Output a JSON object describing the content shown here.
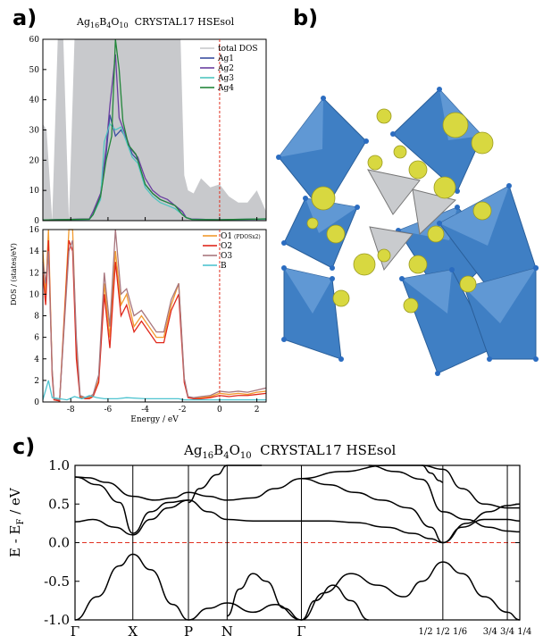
{
  "labels": {
    "a": "a)",
    "b": "b)",
    "c": "c)"
  },
  "colors": {
    "total_dos": "#c8c9cc",
    "Ag1": "#3b4fa0",
    "Ag2": "#6a3fa0",
    "Ag3": "#4fc4c0",
    "Ag4": "#23863a",
    "O1": "#f29a2e",
    "O2": "#e0281b",
    "O3": "#a8767e",
    "B": "#4fc4d0",
    "fermi": "#e03020",
    "octahedron": "#3f7fc4",
    "triangle": "#c9cbce",
    "isosurface": "#d8d840"
  },
  "panel_a": {
    "title_prefix": "Ag",
    "title_sub1": "16",
    "title_b": "B",
    "title_sub2": "4",
    "title_o": "O",
    "title_sub3": "10",
    "title_suffix": "CRYSTAL17 HSEsol",
    "xlabel": "Energy / eV",
    "ylabel": "DOS / (states/eV)",
    "top_yticks": [
      "0",
      "10",
      "20",
      "30",
      "40",
      "50",
      "60"
    ],
    "bottom_yticks": [
      "0",
      "2",
      "4",
      "6",
      "8",
      "10",
      "12",
      "14",
      "16"
    ],
    "xticks": [
      "-8",
      "-6",
      "-4",
      "-2",
      "0",
      "2"
    ],
    "top_legend": [
      "total DOS",
      "Ag1",
      "Ag2",
      "Ag3",
      "Ag4"
    ],
    "bottom_legend": [
      "O1",
      "O2",
      "O3",
      "B"
    ],
    "o1_note": "(PDOSx2)"
  },
  "chart_data": [
    {
      "type": "area",
      "panel": "a-top",
      "xlim": [
        -9.5,
        2.5
      ],
      "ylim": [
        0,
        60
      ],
      "series": [
        {
          "name": "total DOS",
          "x": [
            -9.5,
            -9.3,
            -9.0,
            -8.7,
            -8.4,
            -8.1,
            -7.8,
            -7.4,
            -7.0,
            -6.7,
            -6.4,
            -6.1,
            -5.8,
            -5.5,
            -5.2,
            -4.9,
            -4.5,
            -4.0,
            -3.5,
            -3.0,
            -2.5,
            -2.1,
            -1.9,
            -1.7,
            -1.4,
            -1.0,
            -0.5,
            0.0,
            0.5,
            1.0,
            1.5,
            2.0,
            2.5
          ],
          "y": [
            32,
            30,
            0,
            60,
            60,
            0,
            60,
            60,
            60,
            60,
            60,
            60,
            60,
            60,
            60,
            60,
            60,
            60,
            60,
            60,
            60,
            60,
            15,
            10,
            9,
            14,
            11,
            12,
            8,
            6,
            6,
            10,
            3
          ]
        },
        {
          "name": "Ag1",
          "x": [
            -9.5,
            -7.0,
            -6.8,
            -6.4,
            -6.1,
            -5.9,
            -5.6,
            -5.3,
            -5.0,
            -4.7,
            -4.4,
            -4.0,
            -3.6,
            -3.2,
            -2.8,
            -2.4,
            -2.0,
            -1.8,
            -1.5,
            0,
            2.5
          ],
          "y": [
            0.2,
            0.5,
            2,
            8,
            22,
            35,
            28,
            30,
            27,
            22,
            20,
            12,
            9,
            7,
            6,
            5,
            3,
            1,
            0.5,
            0.3,
            0.6
          ]
        },
        {
          "name": "Ag2",
          "x": [
            -9.5,
            -7.0,
            -6.8,
            -6.4,
            -6.1,
            -5.9,
            -5.6,
            -5.4,
            -5.1,
            -4.8,
            -4.4,
            -4.0,
            -3.6,
            -3.2,
            -2.8,
            -2.4,
            -2.0,
            -1.8,
            -1.5,
            0,
            2.5
          ],
          "y": [
            0.2,
            0.6,
            3,
            9,
            24,
            38,
            55,
            34,
            29,
            24,
            21,
            14,
            10,
            8,
            7,
            5,
            3,
            1,
            0.5,
            0.3,
            0.5
          ]
        },
        {
          "name": "Ag3",
          "x": [
            -9.5,
            -7.0,
            -6.8,
            -6.4,
            -6.2,
            -5.9,
            -5.6,
            -5.3,
            -5.0,
            -4.7,
            -4.4,
            -4.0,
            -3.6,
            -3.2,
            -2.8,
            -2.4,
            -2.0,
            -1.8,
            -1.5,
            0,
            2.5
          ],
          "y": [
            0.2,
            0.4,
            2,
            7,
            26,
            32,
            30,
            31,
            26,
            21,
            19,
            11,
            8,
            6,
            5,
            4,
            2,
            1,
            0.4,
            0.3,
            0.5
          ]
        },
        {
          "name": "Ag4",
          "x": [
            -9.5,
            -7.0,
            -6.8,
            -6.4,
            -6.1,
            -5.8,
            -5.6,
            -5.4,
            -5.2,
            -4.9,
            -4.5,
            -4.0,
            -3.6,
            -3.2,
            -2.8,
            -2.4,
            -2.0,
            -1.8,
            -1.5,
            0,
            2.5
          ],
          "y": [
            0.2,
            0.5,
            2,
            8,
            20,
            28,
            60,
            50,
            33,
            25,
            22,
            12,
            9,
            7,
            6,
            5,
            2,
            1,
            0.4,
            0.3,
            0.6
          ]
        }
      ]
    },
    {
      "type": "line",
      "panel": "a-bottom",
      "xlim": [
        -9.5,
        2.5
      ],
      "ylim": [
        0,
        16
      ],
      "series": [
        {
          "name": "O1",
          "x": [
            -9.5,
            -9.35,
            -9.2,
            -9.0,
            -8.9,
            -8.6,
            -8.1,
            -7.9,
            -7.7,
            -7.5,
            -7.2,
            -7.0,
            -6.8,
            -6.5,
            -6.2,
            -5.9,
            -5.6,
            -5.3,
            -5.0,
            -4.6,
            -4.2,
            -3.8,
            -3.4,
            -3.0,
            -2.6,
            -2.2,
            -1.9,
            -1.7,
            -1.4,
            -1.0,
            -0.5,
            0,
            0.5,
            1.0,
            1.5,
            2.0,
            2.5
          ],
          "y": [
            14,
            10,
            16,
            3,
            0.2,
            0.1,
            16,
            16,
            5,
            0.5,
            0.3,
            0.4,
            0.6,
            2,
            11,
            6,
            14,
            9,
            10,
            7,
            8,
            7,
            6,
            6,
            9,
            11,
            2,
            0.5,
            0.3,
            0.4,
            0.5,
            0.8,
            0.7,
            0.8,
            0.7,
            0.9,
            1.0
          ]
        },
        {
          "name": "O2",
          "x": [
            -9.5,
            -9.35,
            -9.2,
            -9.0,
            -8.9,
            -8.6,
            -8.1,
            -7.9,
            -7.7,
            -7.5,
            -7.2,
            -7.0,
            -6.8,
            -6.5,
            -6.2,
            -5.9,
            -5.6,
            -5.3,
            -5.0,
            -4.6,
            -4.2,
            -3.8,
            -3.4,
            -3.0,
            -2.6,
            -2.2,
            -1.9,
            -1.7,
            -1.4,
            -1.0,
            -0.5,
            0,
            0.5,
            1.0,
            1.5,
            2.0,
            2.5
          ],
          "y": [
            12,
            9,
            15,
            2.5,
            0.2,
            0.1,
            15,
            14,
            4,
            0.4,
            0.3,
            0.3,
            0.5,
            1.8,
            10,
            5,
            13,
            8,
            9,
            6.5,
            7.5,
            6.5,
            5.5,
            5.5,
            8.5,
            10,
            1.8,
            0.4,
            0.3,
            0.3,
            0.4,
            0.6,
            0.5,
            0.6,
            0.6,
            0.7,
            0.8
          ]
        },
        {
          "name": "O3",
          "x": [
            -9.5,
            -9.35,
            -9.2,
            -9.0,
            -8.9,
            -8.6,
            -8.1,
            -7.9,
            -7.7,
            -7.5,
            -7.2,
            -7.0,
            -6.8,
            -6.5,
            -6.2,
            -5.9,
            -5.6,
            -5.3,
            -5.0,
            -4.6,
            -4.2,
            -3.8,
            -3.4,
            -3.0,
            -2.6,
            -2.2,
            -1.9,
            -1.7,
            -1.4,
            -1.0,
            -0.5,
            0,
            0.5,
            1.0,
            1.5,
            2.0,
            2.5
          ],
          "y": [
            13,
            11,
            14,
            3,
            0.3,
            0.2,
            14,
            15,
            6,
            0.6,
            0.4,
            0.5,
            0.7,
            2.5,
            12,
            7,
            16,
            10,
            10.5,
            8,
            8.5,
            7.5,
            6.5,
            6.5,
            9.5,
            11,
            2.2,
            0.5,
            0.4,
            0.5,
            0.6,
            1.0,
            0.9,
            1.0,
            0.9,
            1.1,
            1.3
          ]
        },
        {
          "name": "B",
          "x": [
            -9.5,
            -9.2,
            -9.0,
            -8.6,
            -8.2,
            -7.8,
            -7.4,
            -7.0,
            -6.6,
            -6.2,
            -5.5,
            -5.0,
            -4.0,
            -3.0,
            -2.2,
            -1.9,
            -1.5,
            -1.0,
            0,
            1.0,
            2.5
          ],
          "y": [
            0.2,
            2.0,
            0.4,
            0.3,
            0.2,
            0.5,
            0.3,
            0.6,
            0.4,
            0.3,
            0.3,
            0.4,
            0.3,
            0.3,
            0.3,
            0.2,
            0.2,
            0.2,
            0.2,
            0.2,
            0.2
          ]
        }
      ]
    },
    {
      "type": "line",
      "panel": "c",
      "title": "Ag16B4O10  CRYSTAL17  HSEsol",
      "ylabel": "E - E_F / eV",
      "ylim": [
        -1.0,
        1.0
      ],
      "xlim": [
        0,
        1
      ],
      "yticks": [
        "1.0",
        "0.5",
        "0.0",
        "-0.5",
        "-1.0"
      ],
      "xticks": [
        {
          "label": "Γ",
          "x": 0.0
        },
        {
          "label": "X",
          "x": 0.13
        },
        {
          "label": "P",
          "x": 0.255
        },
        {
          "label": "N",
          "x": 0.342
        },
        {
          "label": "Γ",
          "x": 0.509
        },
        {
          "label": "1/2 1/2 1/6",
          "x": 0.827
        },
        {
          "label": "3/4 3/4 1/4",
          "x": 0.972
        }
      ],
      "series": [
        {
          "x": [
            0,
            0.05,
            0.1,
            0.13,
            0.17,
            0.22,
            0.255
          ],
          "y": [
            -1.0,
            -0.7,
            -0.3,
            -0.15,
            -0.35,
            -0.8,
            -1.0
          ]
        },
        {
          "x": [
            0.255,
            0.3,
            0.342,
            0.4,
            0.45,
            0.509
          ],
          "y": [
            -1.0,
            -0.85,
            -0.78,
            -0.9,
            -0.8,
            -1.0
          ]
        },
        {
          "x": [
            0.342,
            0.37,
            0.4,
            0.43,
            0.47,
            0.509
          ],
          "y": [
            -0.95,
            -0.6,
            -0.4,
            -0.5,
            -0.85,
            -1.0
          ]
        },
        {
          "x": [
            0.509,
            0.56,
            0.62,
            0.68,
            0.74,
            0.78,
            0.827,
            0.87,
            0.92,
            0.972,
            1.0
          ],
          "y": [
            -1.0,
            -0.65,
            -0.4,
            -0.55,
            -0.7,
            -0.5,
            -0.25,
            -0.4,
            -0.7,
            -0.9,
            -1.0
          ]
        },
        {
          "x": [
            0.509,
            0.54,
            0.58,
            0.62,
            0.66
          ],
          "y": [
            -1.0,
            -0.75,
            -0.55,
            -0.75,
            -1.0
          ]
        },
        {
          "x": [
            0,
            0.04,
            0.09,
            0.13,
            0.17,
            0.21,
            0.255
          ],
          "y": [
            0.27,
            0.3,
            0.2,
            0.1,
            0.3,
            0.45,
            0.55
          ]
        },
        {
          "x": [
            0,
            0.05,
            0.1,
            0.13,
            0.17,
            0.21,
            0.255
          ],
          "y": [
            0.85,
            0.75,
            0.52,
            0.12,
            0.4,
            0.52,
            0.55
          ]
        },
        {
          "x": [
            0,
            0.03,
            0.07,
            0.13,
            0.18,
            0.22,
            0.255
          ],
          "y": [
            0.85,
            0.84,
            0.78,
            0.6,
            0.55,
            0.58,
            0.65
          ]
        },
        {
          "x": [
            0.255,
            0.3,
            0.342,
            0.4,
            0.45,
            0.509
          ],
          "y": [
            0.55,
            0.4,
            0.3,
            0.28,
            0.28,
            0.28
          ]
        },
        {
          "x": [
            0.255,
            0.3,
            0.342,
            0.4,
            0.45,
            0.509
          ],
          "y": [
            0.65,
            0.6,
            0.55,
            0.58,
            0.7,
            0.83
          ]
        },
        {
          "x": [
            0.255,
            0.28,
            0.32,
            0.342,
            0.38,
            0.42
          ],
          "y": [
            0.52,
            0.7,
            0.88,
            1.0,
            1.0,
            1.0
          ]
        },
        {
          "x": [
            0.509,
            0.57,
            0.63,
            0.7,
            0.76,
            0.8,
            0.827,
            0.88,
            0.93,
            0.972,
            1.0
          ],
          "y": [
            0.28,
            0.28,
            0.26,
            0.2,
            0.12,
            0.05,
            0.0,
            0.25,
            0.4,
            0.48,
            0.5
          ]
        },
        {
          "x": [
            0.509,
            0.57,
            0.63,
            0.69,
            0.75,
            0.8,
            0.827,
            0.87,
            0.92,
            0.972,
            1.0
          ],
          "y": [
            0.83,
            0.75,
            0.65,
            0.55,
            0.45,
            0.2,
            0.0,
            0.2,
            0.3,
            0.3,
            0.28
          ]
        },
        {
          "x": [
            0.509,
            0.6,
            0.7,
            0.78,
            0.827,
            0.87,
            0.92,
            0.972,
            1.0
          ],
          "y": [
            0.83,
            0.92,
            1.0,
            1.0,
            0.95,
            0.7,
            0.5,
            0.45,
            0.45
          ]
        },
        {
          "x": [
            0.66,
            0.72,
            0.78,
            0.827,
            0.88,
            0.93,
            0.972,
            1.0
          ],
          "y": [
            1.0,
            0.92,
            0.82,
            0.4,
            0.3,
            0.2,
            0.15,
            0.14
          ]
        },
        {
          "x": [
            0.78,
            0.8,
            0.82,
            0.827
          ],
          "y": [
            1.0,
            0.9,
            0.8,
            0.78
          ]
        }
      ]
    }
  ],
  "panel_c": {
    "title_prefix": "Ag",
    "title_sub1": "16",
    "title_b": "B",
    "title_sub2": "4",
    "title_o": "O",
    "title_sub3": "10",
    "title_suffix": "CRYSTAL17  HSEsol",
    "ylabel_main": "E - E",
    "ylabel_sub": "F",
    "ylabel_tail": " / eV"
  }
}
